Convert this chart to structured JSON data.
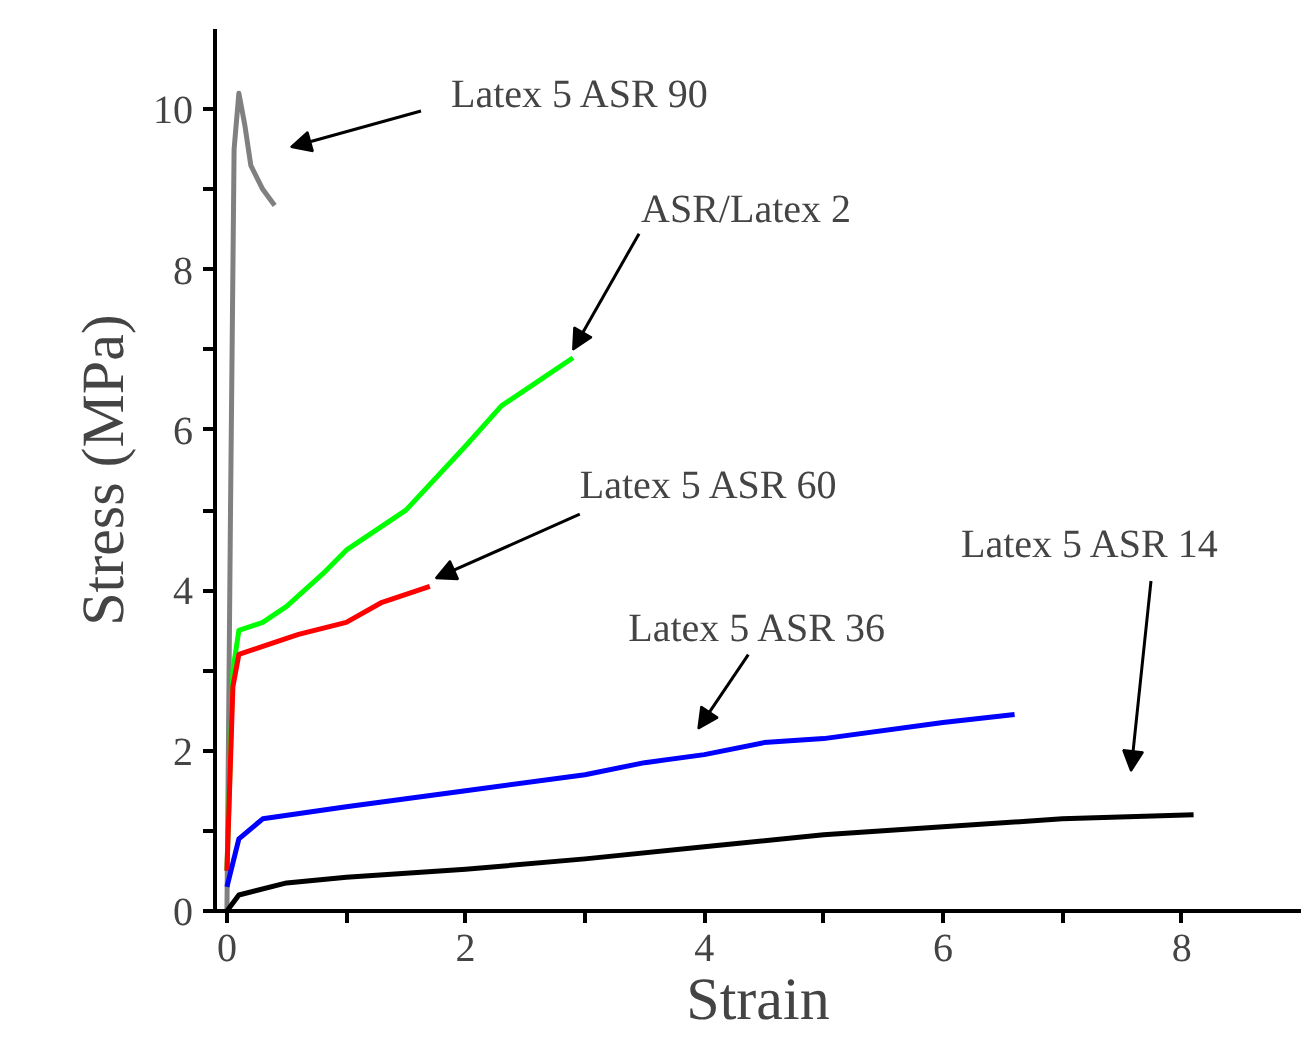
{
  "chart_data": {
    "type": "line",
    "xlabel": "Strain",
    "ylabel": "Stress (MPa)",
    "xlim": [
      -0.1,
      9
    ],
    "ylim": [
      0,
      11
    ],
    "xticks": [
      0,
      {
        "value": 1,
        "label": null
      },
      2,
      {
        "value": 3,
        "label": null
      },
      4,
      {
        "value": 5,
        "label": null
      },
      6,
      {
        "value": 7,
        "label": null
      },
      8
    ],
    "yticks": [
      0,
      {
        "value": 1,
        "label": null
      },
      2,
      {
        "value": 3,
        "label": null
      },
      4,
      {
        "value": 5,
        "label": null
      },
      6,
      {
        "value": 7,
        "label": null
      },
      8,
      {
        "value": 9,
        "label": null
      },
      10
    ],
    "grid": false,
    "marker": "none",
    "line_style": "solid",
    "series": [
      {
        "color": "#808080",
        "x": [
          0,
          0.03,
          0.06,
          0.1,
          0.15,
          0.2,
          0.3,
          0.4
        ],
        "values": [
          0,
          5,
          9.5,
          10.2,
          9.8,
          9.3,
          9.0,
          8.8
        ]
      },
      {
        "color": "#00ff00",
        "x": [
          0,
          0.05,
          0.1,
          0.3,
          0.5,
          0.8,
          1.0,
          1.5,
          2.0,
          2.3,
          2.6,
          2.9
        ],
        "values": [
          0.5,
          3.0,
          3.5,
          3.6,
          3.8,
          4.2,
          4.5,
          5.0,
          5.8,
          6.3,
          6.6,
          6.9
        ]
      },
      {
        "color": "#ff0000",
        "x": [
          0,
          0.05,
          0.1,
          0.3,
          0.6,
          1.0,
          1.3,
          1.7
        ],
        "values": [
          0.5,
          2.8,
          3.2,
          3.3,
          3.45,
          3.6,
          3.85,
          4.05
        ]
      },
      {
        "color": "#0000ff",
        "x": [
          0,
          0.1,
          0.3,
          1,
          2,
          3,
          3.5,
          4,
          4.5,
          5,
          6,
          6.6
        ],
        "values": [
          0.3,
          0.9,
          1.15,
          1.3,
          1.5,
          1.7,
          1.85,
          1.95,
          2.1,
          2.15,
          2.35,
          2.45
        ]
      },
      {
        "color": "#000000",
        "x": [
          0,
          0.1,
          0.5,
          1,
          2,
          3,
          4,
          5,
          6,
          7,
          8.1
        ],
        "values": [
          0,
          0.2,
          0.35,
          0.42,
          0.52,
          0.65,
          0.8,
          0.95,
          1.05,
          1.15,
          1.2
        ]
      }
    ],
    "annotations": [
      "Latex 5 ASR 90",
      {
        "text": "ASR/Latex 2",
        "x": 2.9,
        "y": 7.0
      },
      {
        "text": "Latex 5 ASR 60",
        "x": 1.75,
        "y": 4.15
      },
      {
        "text": "Latex 5 ASR 36",
        "x": 4,
        "y": 1.95
      },
      "Latex 5 ASR 14"
    ]
  }
}
